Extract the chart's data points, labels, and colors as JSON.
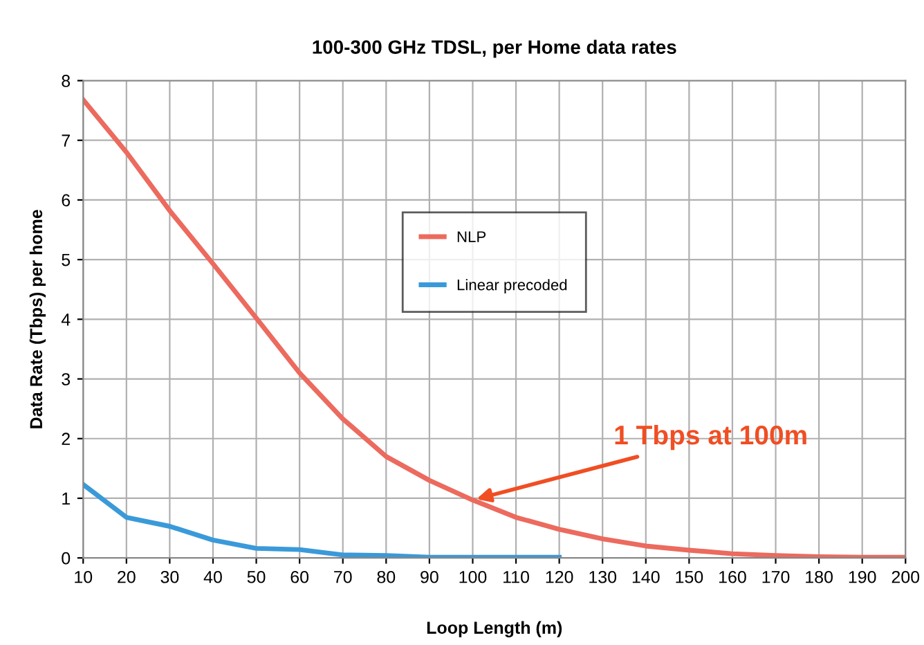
{
  "chart_data": {
    "type": "line",
    "title": "100-300 GHz TDSL, per Home data rates",
    "xlabel": "Loop Length (m)",
    "ylabel": "Data Rate (Tbps) per home",
    "x": [
      10,
      20,
      30,
      40,
      50,
      60,
      70,
      80,
      90,
      100,
      110,
      120,
      130,
      140,
      150,
      160,
      170,
      180,
      190,
      200
    ],
    "series": [
      {
        "name": "NLP",
        "color": "#ec6a5e",
        "values": [
          7.68,
          6.8,
          5.82,
          4.93,
          4.02,
          3.1,
          2.33,
          1.7,
          1.3,
          0.97,
          0.68,
          0.48,
          0.32,
          0.2,
          0.13,
          0.07,
          0.04,
          0.02,
          0.01,
          0.01
        ]
      },
      {
        "name": "Linear precoded",
        "color": "#3a9ad9",
        "values": [
          1.23,
          0.68,
          0.53,
          0.3,
          0.16,
          0.14,
          0.05,
          0.04,
          0.01,
          0.01,
          0.01,
          0.01,
          null,
          null,
          null,
          null,
          null,
          null,
          null,
          null
        ]
      }
    ],
    "annotations": [
      {
        "text": "1 Tbps at 100m",
        "x": 100,
        "y": 0.97
      }
    ],
    "xlim": [
      10,
      200
    ],
    "xticks": [
      10,
      20,
      30,
      40,
      50,
      60,
      70,
      80,
      90,
      100,
      110,
      120,
      130,
      140,
      150,
      160,
      170,
      180,
      190,
      200
    ],
    "ylim": [
      0,
      8
    ],
    "yticks": [
      0,
      1,
      2,
      3,
      4,
      5,
      6,
      7,
      8
    ],
    "grid": true,
    "legend": "top",
    "marker": "none",
    "line_style": "solid"
  }
}
